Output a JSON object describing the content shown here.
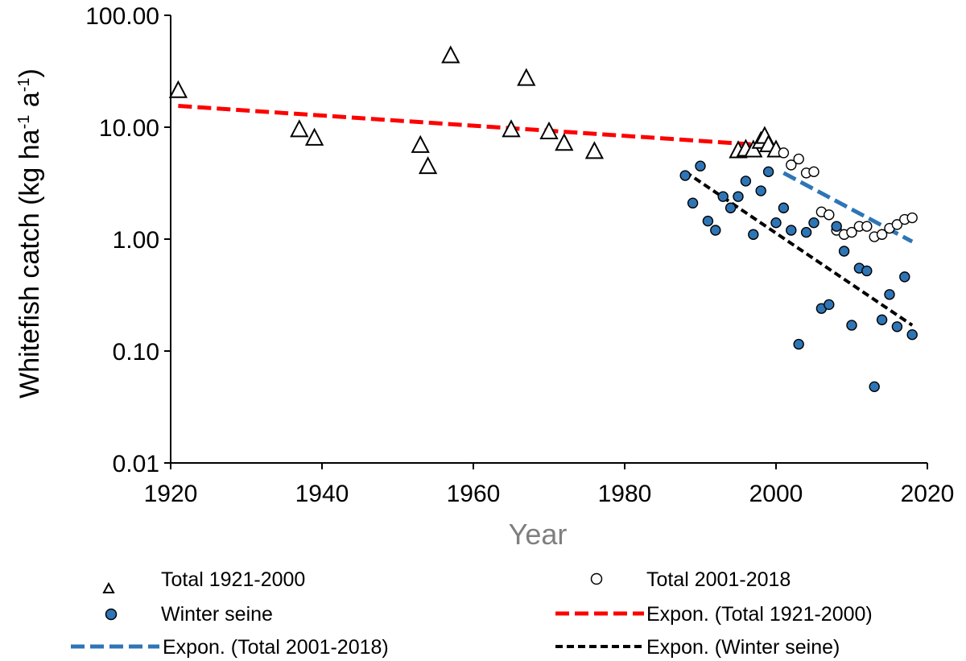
{
  "chart_data": {
    "type": "scatter",
    "title": "",
    "xlabel": "Year",
    "ylabel": {
      "prefix": "Whitefish catch (kg ha",
      "sup1": "-1",
      "mid": " a",
      "sup2": "-1",
      "suffix": ")"
    },
    "y_scale": "log",
    "xlim": [
      1920,
      2020
    ],
    "ylim": [
      0.01,
      100
    ],
    "x_ticks": [
      1920,
      1940,
      1960,
      1980,
      2000,
      2020
    ],
    "x_tick_labels": [
      "1920",
      "1940",
      "1960",
      "1980",
      "2000",
      "2020"
    ],
    "y_ticks": [
      0.01,
      0.1,
      1,
      10,
      100
    ],
    "y_tick_labels": [
      "0.01",
      "0.10",
      "1.00",
      "10.00",
      "100.00"
    ],
    "grid": false,
    "legend_position": "bottom",
    "series": [
      {
        "name": "Total 1921-2000",
        "marker": "triangle-open",
        "color": "#000000",
        "points": [
          [
            1921,
            21
          ],
          [
            1937,
            9.4
          ],
          [
            1939,
            7.9
          ],
          [
            1953,
            6.8
          ],
          [
            1954,
            4.4
          ],
          [
            1957,
            43
          ],
          [
            1965,
            9.4
          ],
          [
            1967,
            27
          ],
          [
            1970,
            9.0
          ],
          [
            1972,
            7.1
          ],
          [
            1976,
            6.0
          ],
          [
            1995,
            6.1
          ],
          [
            1996,
            6.3
          ],
          [
            1997,
            6.2
          ],
          [
            1998,
            7.4
          ],
          [
            1998.5,
            8.2
          ],
          [
            1999,
            6.9
          ],
          [
            2000,
            6.2
          ]
        ]
      },
      {
        "name": "Total 2001-2018",
        "marker": "circle-open",
        "color": "#000000",
        "points": [
          [
            2001,
            5.9
          ],
          [
            2002,
            4.6
          ],
          [
            2003,
            5.2
          ],
          [
            2004,
            3.9
          ],
          [
            2005,
            4.0
          ],
          [
            2006,
            1.75
          ],
          [
            2007,
            1.65
          ],
          [
            2008,
            1.2
          ],
          [
            2009,
            1.1
          ],
          [
            2010,
            1.15
          ],
          [
            2011,
            1.3
          ],
          [
            2012,
            1.3
          ],
          [
            2013,
            1.05
          ],
          [
            2014,
            1.1
          ],
          [
            2015,
            1.25
          ],
          [
            2016,
            1.35
          ],
          [
            2017,
            1.5
          ],
          [
            2018,
            1.55
          ]
        ]
      },
      {
        "name": "Winter seine",
        "marker": "circle-filled",
        "color": "#2e75b6",
        "points": [
          [
            1988,
            3.7
          ],
          [
            1989,
            2.1
          ],
          [
            1990,
            4.5
          ],
          [
            1991,
            1.45
          ],
          [
            1992,
            1.2
          ],
          [
            1993,
            2.4
          ],
          [
            1994,
            1.9
          ],
          [
            1995,
            2.4
          ],
          [
            1996,
            3.3
          ],
          [
            1997,
            1.1
          ],
          [
            1998,
            2.7
          ],
          [
            1999,
            4.0
          ],
          [
            2000,
            1.4
          ],
          [
            2001,
            1.9
          ],
          [
            2002,
            1.2
          ],
          [
            2003,
            0.115
          ],
          [
            2004,
            1.15
          ],
          [
            2005,
            1.4
          ],
          [
            2006,
            0.24
          ],
          [
            2007,
            0.26
          ],
          [
            2008,
            1.3
          ],
          [
            2009,
            0.78
          ],
          [
            2010,
            0.17
          ],
          [
            2011,
            0.55
          ],
          [
            2012,
            0.52
          ],
          [
            2013,
            0.048
          ],
          [
            2014,
            0.19
          ],
          [
            2015,
            0.32
          ],
          [
            2016,
            0.165
          ],
          [
            2017,
            0.46
          ],
          [
            2018,
            0.14
          ]
        ]
      }
    ],
    "trendlines": [
      {
        "name": "Expon. (Total 1921-2000)",
        "color": "#ff0000",
        "style": "long-dash",
        "points": [
          [
            1921,
            15.5
          ],
          [
            2000,
            6.8
          ]
        ]
      },
      {
        "name": "Expon. (Total 2001-2018)",
        "color": "#2e75b6",
        "style": "long-dash",
        "points": [
          [
            2001,
            3.9
          ],
          [
            2018,
            0.95
          ]
        ]
      },
      {
        "name": "Expon. (Winter seine)",
        "color": "#000000",
        "style": "short-dash",
        "points": [
          [
            1988,
            4.0
          ],
          [
            2018,
            0.17
          ]
        ]
      }
    ],
    "legend": {
      "entries": [
        {
          "label": "Total 1921-2000",
          "symbol": "triangle-open"
        },
        {
          "label": "Total 2001-2018",
          "symbol": "circle-open"
        },
        {
          "label": "Winter seine",
          "symbol": "circle-filled"
        },
        {
          "label": "Expon. (Total 1921-2000)",
          "symbol": "red-dash"
        },
        {
          "label": "Expon. (Total 2001-2018)",
          "symbol": "blue-dash"
        },
        {
          "label": "Expon. (Winter seine)",
          "symbol": "black-dash"
        }
      ]
    }
  }
}
